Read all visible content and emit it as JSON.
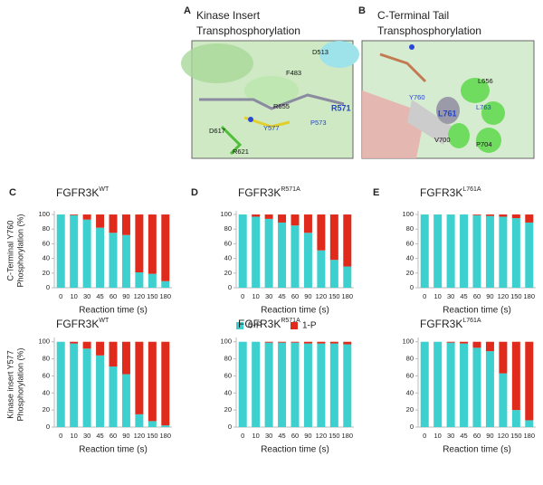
{
  "panels": {
    "A": {
      "letter": "A",
      "title": [
        "Kinase Insert",
        "Transphosphorylation"
      ],
      "labels": [
        "D513",
        "F483",
        "R655",
        "R571",
        "P573",
        "Y577",
        "D617",
        "R621"
      ]
    },
    "B": {
      "letter": "B",
      "title": [
        "C-Terminal Tail",
        "Transphosphorylation"
      ],
      "labels": [
        "L656",
        "Y760",
        "L761",
        "L763",
        "V700",
        "P704"
      ]
    }
  },
  "chart_data": [
    {
      "type": "stacked_bar",
      "panel": "C",
      "title": "FGFR3K",
      "title_superscript": "WT",
      "y_label": [
        "C-Terminal Y760",
        "Phosphorylation (%)"
      ],
      "x_label": "Reaction time (s)",
      "categories": [
        0,
        10,
        30,
        45,
        60,
        90,
        120,
        150,
        180
      ],
      "ylim": [
        0,
        105
      ],
      "yticks": [
        0,
        20,
        40,
        60,
        80,
        100
      ],
      "series": [
        {
          "name": "0-P",
          "color": "#3ecfcf",
          "values": [
            100,
            99,
            93,
            82,
            75,
            72,
            21,
            19,
            9
          ]
        },
        {
          "name": "1-P",
          "color": "#e02b1c",
          "values": [
            0,
            1,
            7,
            18,
            25,
            28,
            79,
            81,
            91
          ]
        }
      ]
    },
    {
      "type": "stacked_bar",
      "panel": "D",
      "title": "FGFR3K",
      "title_superscript": "R571A",
      "x_label": "Reaction time (s)",
      "legend": true,
      "categories": [
        0,
        10,
        30,
        45,
        60,
        90,
        120,
        150,
        180
      ],
      "ylim": [
        0,
        105
      ],
      "yticks": [
        0,
        20,
        40,
        60,
        80,
        100
      ],
      "series": [
        {
          "name": "0-P",
          "color": "#3ecfcf",
          "values": [
            100,
            97,
            94,
            89,
            85,
            75,
            51,
            38,
            29
          ]
        },
        {
          "name": "1-P",
          "color": "#e02b1c",
          "values": [
            0,
            3,
            6,
            11,
            15,
            25,
            49,
            62,
            71
          ]
        }
      ]
    },
    {
      "type": "stacked_bar",
      "panel": "E",
      "title": "FGFR3K",
      "title_superscript": "L761A",
      "x_label": "Reaction time (s)",
      "categories": [
        0,
        10,
        30,
        45,
        60,
        90,
        120,
        150,
        180
      ],
      "ylim": [
        0,
        105
      ],
      "yticks": [
        0,
        20,
        40,
        60,
        80,
        100
      ],
      "series": [
        {
          "name": "0-P",
          "color": "#3ecfcf",
          "values": [
            100,
            100,
            100,
            100,
            99,
            98,
            97,
            95,
            89
          ]
        },
        {
          "name": "1-P",
          "color": "#e02b1c",
          "values": [
            0,
            0,
            0,
            0,
            1,
            2,
            3,
            5,
            11
          ]
        }
      ]
    },
    {
      "type": "stacked_bar",
      "title": "FGFR3K",
      "title_superscript": "WT",
      "y_label": [
        "Kinase insert Y577",
        "Phosphorylation (%)"
      ],
      "x_label": "Reaction time (s)",
      "categories": [
        0,
        10,
        30,
        45,
        60,
        90,
        120,
        150,
        180
      ],
      "ylim": [
        0,
        105
      ],
      "yticks": [
        0,
        20,
        40,
        60,
        80,
        100
      ],
      "series": [
        {
          "name": "0-P",
          "color": "#3ecfcf",
          "values": [
            100,
            98,
            92,
            84,
            71,
            62,
            15,
            7,
            2
          ]
        },
        {
          "name": "1-P",
          "color": "#e02b1c",
          "values": [
            0,
            2,
            8,
            16,
            29,
            38,
            85,
            93,
            98
          ]
        }
      ]
    },
    {
      "type": "stacked_bar",
      "title": "FGFR3K",
      "title_superscript": "R571A",
      "x_label": "Reaction time (s)",
      "categories": [
        0,
        10,
        30,
        45,
        60,
        90,
        120,
        150,
        180
      ],
      "ylim": [
        0,
        105
      ],
      "yticks": [
        0,
        20,
        40,
        60,
        80,
        100
      ],
      "series": [
        {
          "name": "0-P",
          "color": "#3ecfcf",
          "values": [
            100,
            100,
            99,
            99,
            99,
            98,
            98,
            98,
            97
          ]
        },
        {
          "name": "1-P",
          "color": "#e02b1c",
          "values": [
            0,
            0,
            1,
            1,
            1,
            2,
            2,
            2,
            3
          ]
        }
      ]
    },
    {
      "type": "stacked_bar",
      "title": "FGFR3K",
      "title_superscript": "L761A",
      "x_label": "Reaction time (s)",
      "categories": [
        0,
        10,
        30,
        45,
        60,
        90,
        120,
        150,
        180
      ],
      "ylim": [
        0,
        105
      ],
      "yticks": [
        0,
        20,
        40,
        60,
        80,
        100
      ],
      "series": [
        {
          "name": "0-P",
          "color": "#3ecfcf",
          "values": [
            100,
            100,
            99,
            98,
            93,
            89,
            63,
            20,
            8
          ]
        },
        {
          "name": "1-P",
          "color": "#e02b1c",
          "values": [
            0,
            0,
            1,
            2,
            7,
            11,
            37,
            80,
            92
          ]
        }
      ]
    }
  ]
}
